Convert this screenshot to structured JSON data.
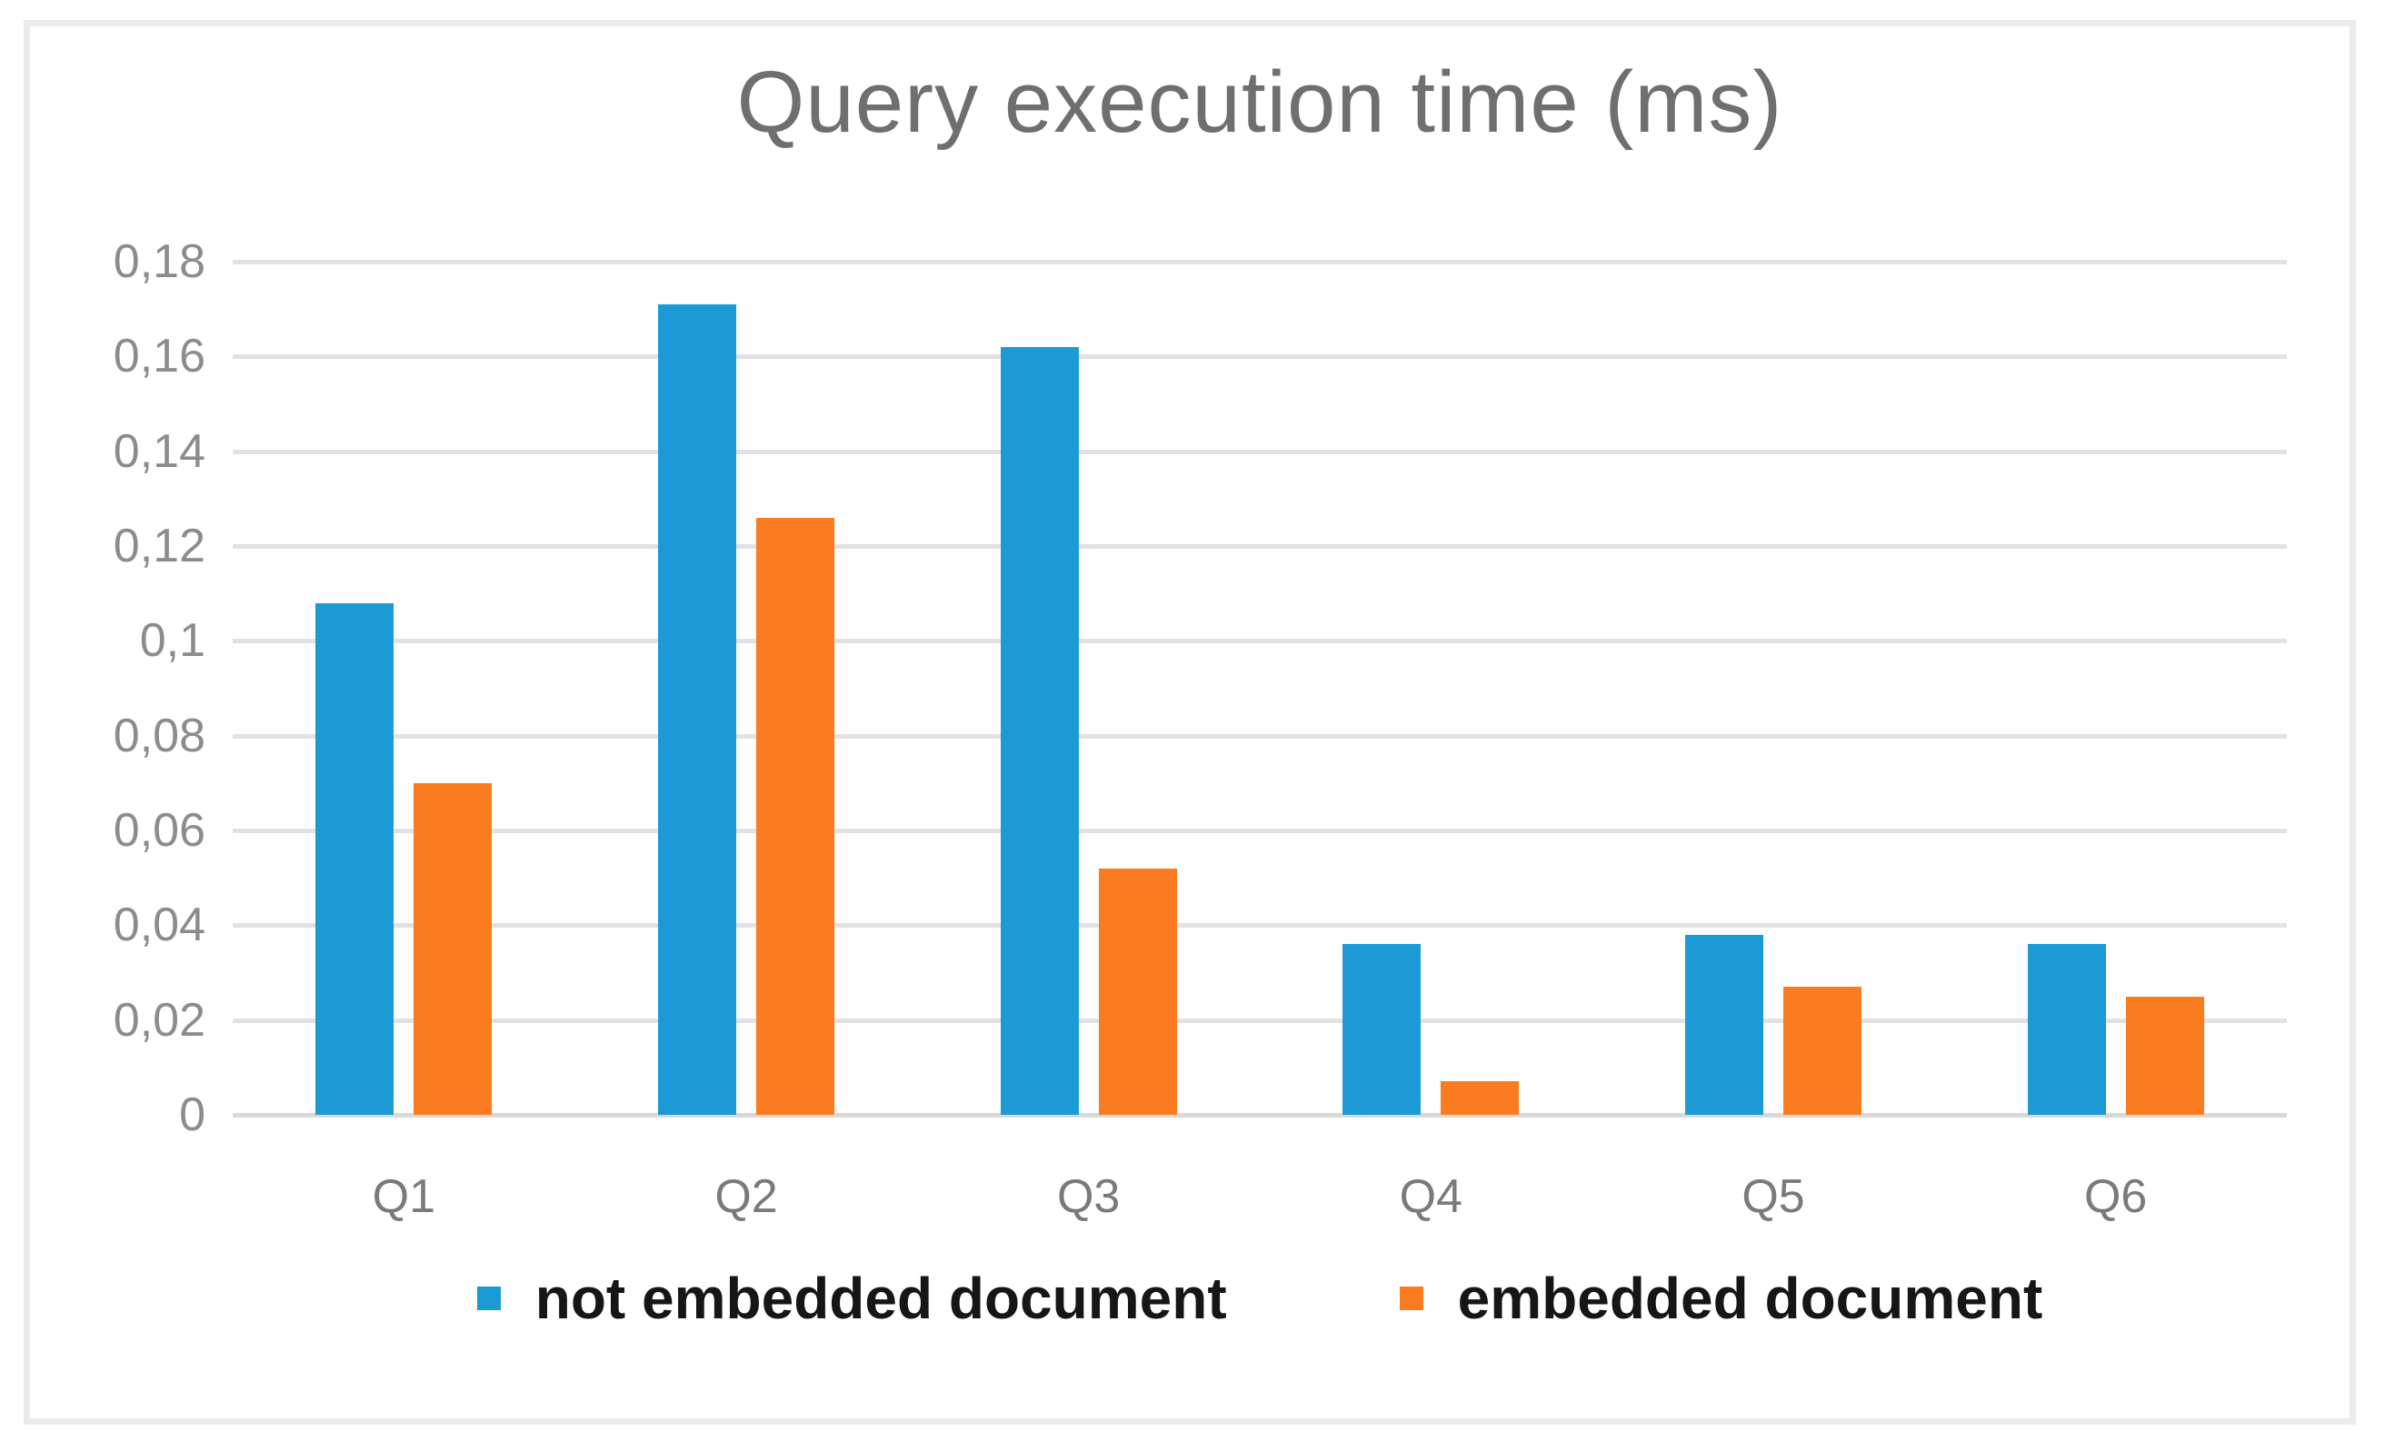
{
  "chart_data": {
    "type": "bar",
    "title": "Query execution time (ms)",
    "categories": [
      "Q1",
      "Q2",
      "Q3",
      "Q4",
      "Q5",
      "Q6"
    ],
    "series": [
      {
        "name": "not embedded document",
        "color": "#1C9AD6",
        "values": [
          0.108,
          0.171,
          0.162,
          0.036,
          0.038,
          0.036
        ]
      },
      {
        "name": "embedded document",
        "color": "#FB7C20",
        "values": [
          0.07,
          0.126,
          0.052,
          0.007,
          0.027,
          0.025
        ]
      }
    ],
    "ylim": [
      0,
      0.18
    ],
    "ytick_step": 0.02,
    "ytick_labels": [
      "0",
      "0,02",
      "0,04",
      "0,06",
      "0,08",
      "0,1",
      "0,12",
      "0,14",
      "0,16",
      "0,18"
    ],
    "decimal_separator": ",",
    "grid": true,
    "legend_position": "bottom",
    "gridline_color": "#e2e2e2",
    "title_color": "#6f6f6f",
    "tick_color": "#8c8c8c"
  }
}
